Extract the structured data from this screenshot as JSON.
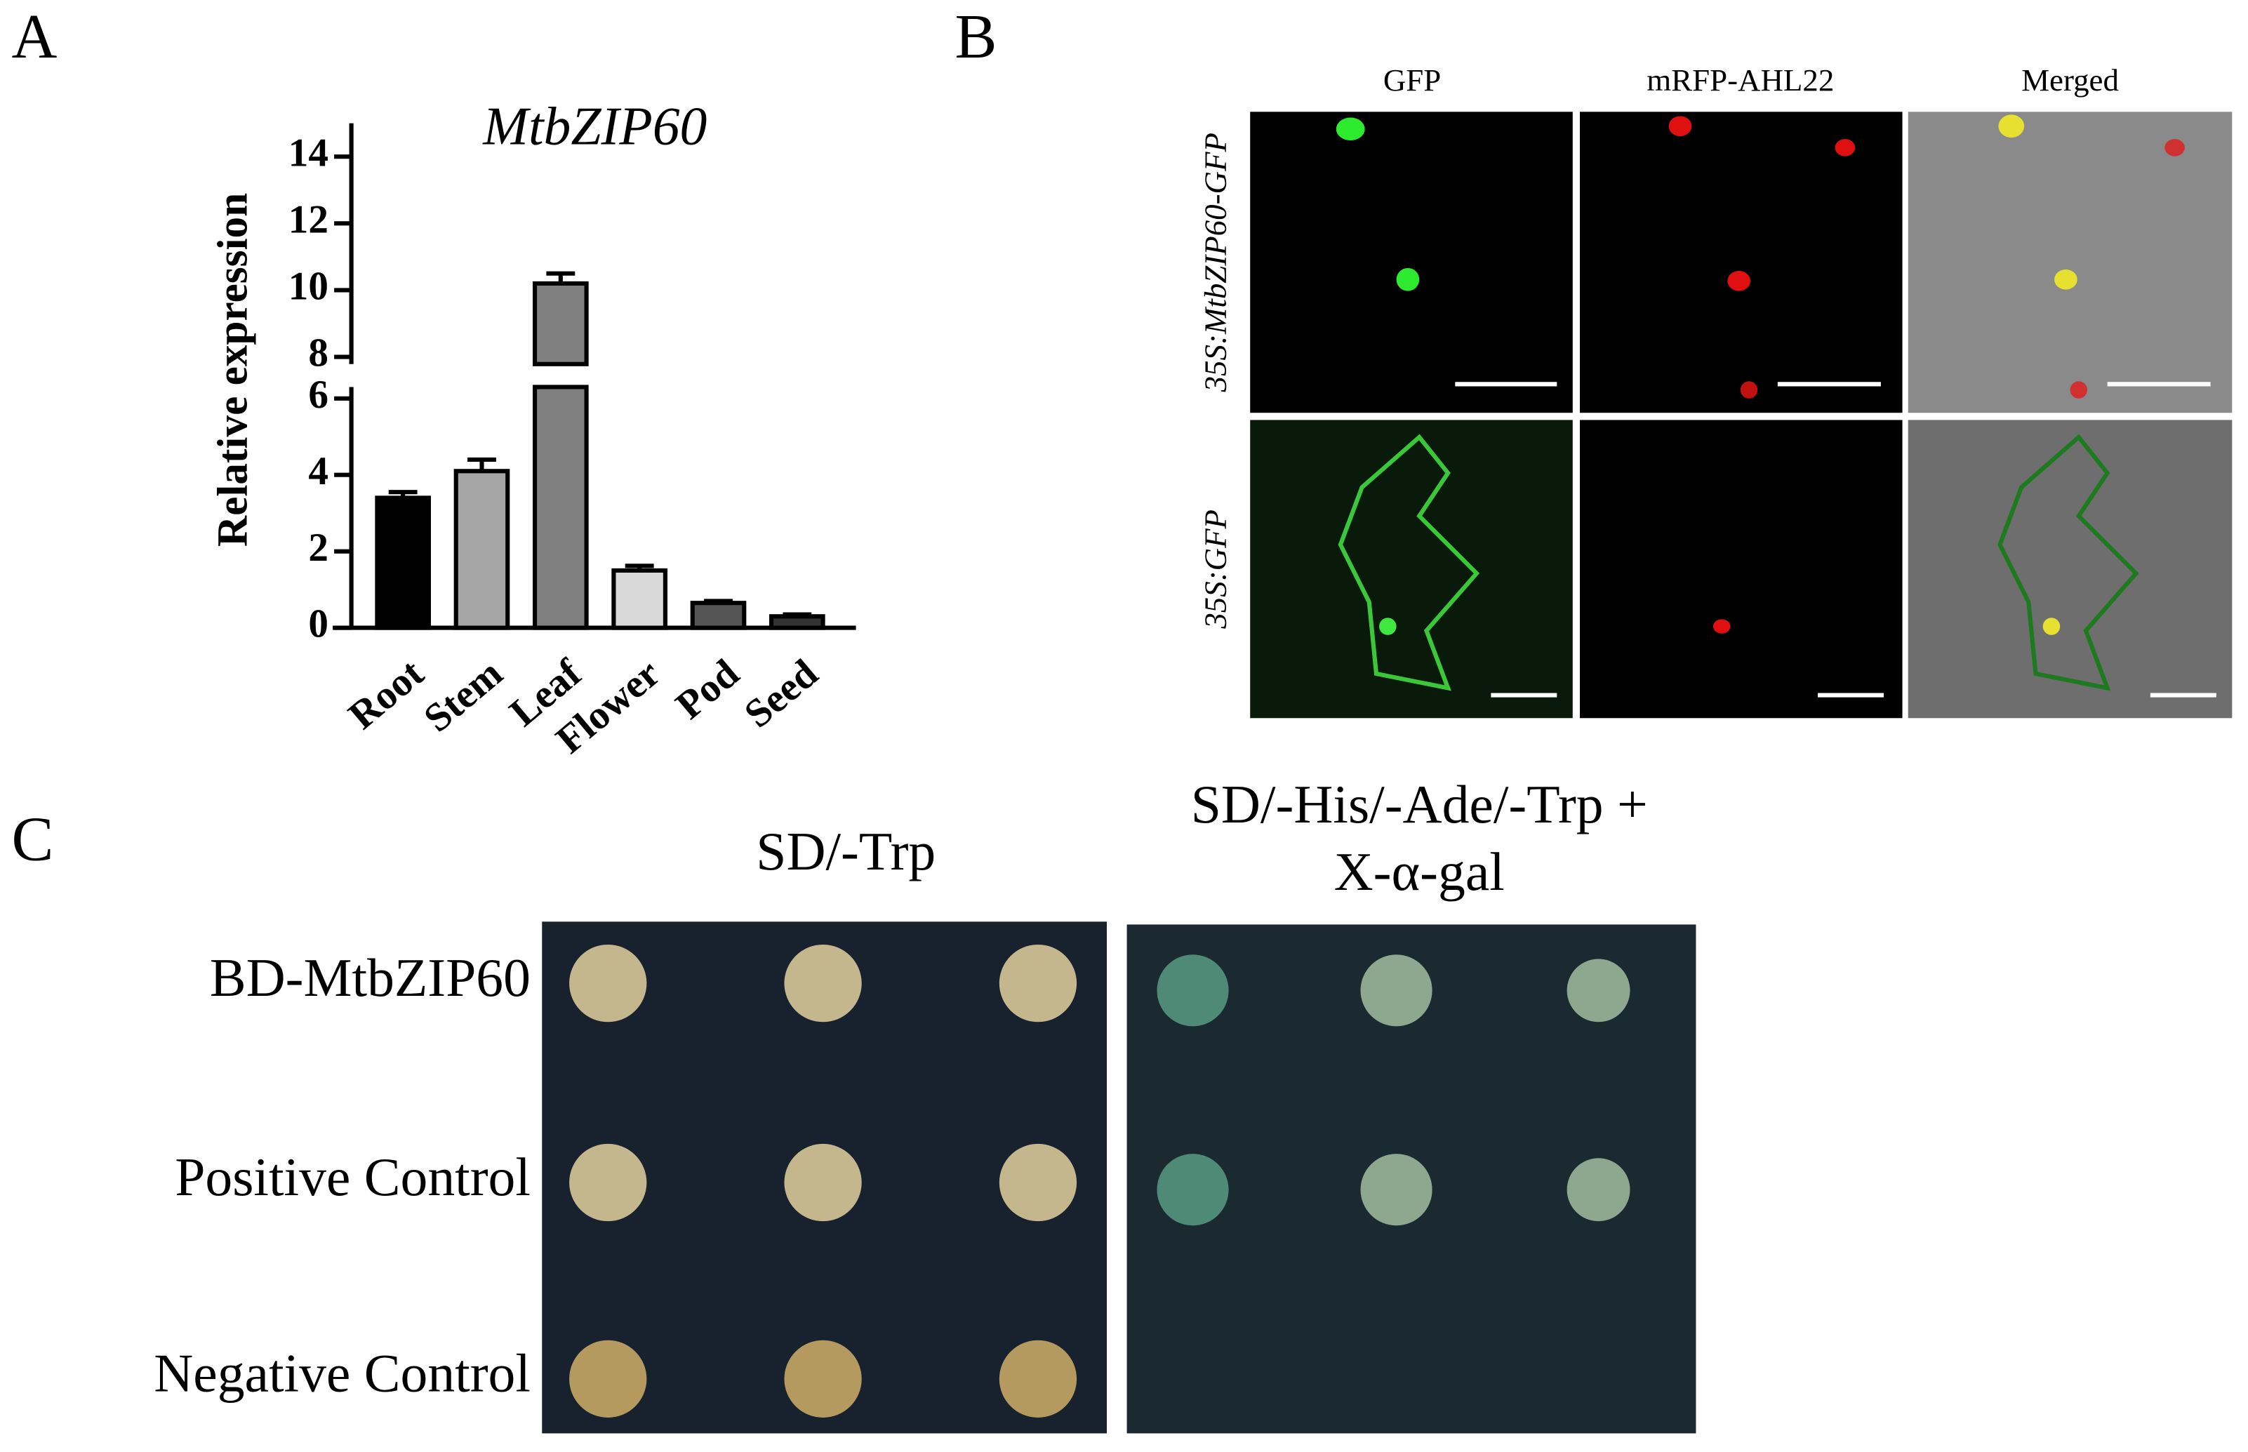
{
  "panel_labels": [
    "A",
    "B",
    "C"
  ],
  "chart_data": {
    "type": "bar",
    "title": "MtbZIP60",
    "y_label": "Relative expression",
    "categories": [
      "Root",
      "Stem",
      "Leaf",
      "Flower",
      "Pod",
      "Seed"
    ],
    "values": [
      3.4,
      4.1,
      10.2,
      1.5,
      0.65,
      0.3
    ],
    "errors": [
      0.15,
      0.3,
      0.3,
      0.12,
      0.05,
      0.05
    ],
    "colors": [
      "#000000",
      "#a6a6a6",
      "#808080",
      "#d9d9d9",
      "#555555",
      "#333333"
    ],
    "ylim": [
      0,
      15
    ],
    "ybreak": [
      6,
      8
    ],
    "yticks": [
      0,
      2,
      4,
      6,
      8,
      10,
      12,
      14
    ]
  },
  "microscopy": {
    "columns": [
      "GFP",
      "mRFP-AHL22",
      "Merged"
    ],
    "rows": [
      "35S:MtbZIP60-GFP",
      "35S:GFP"
    ]
  },
  "yeast": {
    "conditions": [
      [
        "SD/-Trp"
      ],
      [
        "SD/-His/-Ade/-Trp +",
        "X-α-gal"
      ]
    ],
    "rows": [
      "BD-MtbZIP60",
      "Positive Control",
      "Negative Control"
    ]
  }
}
